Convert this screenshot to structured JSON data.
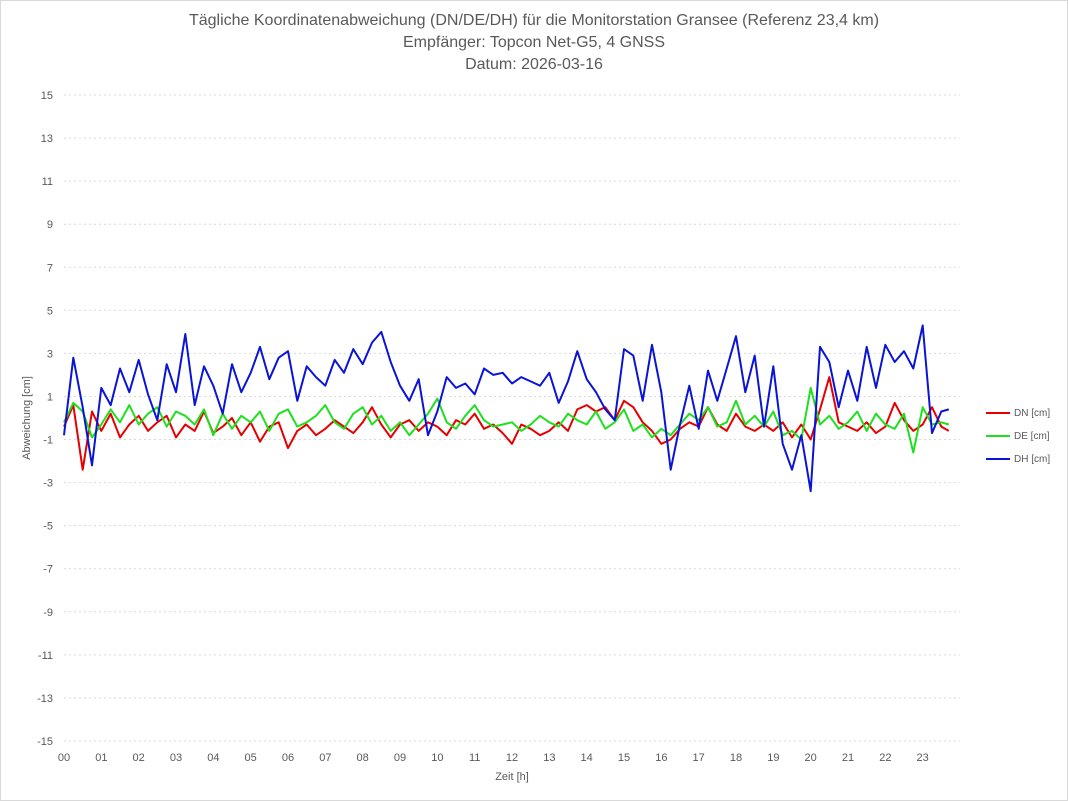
{
  "chart_data": {
    "type": "line",
    "title": "Tägliche Koordinatenabweichung (DN/DE/DH) für die Monitorstation Gransee (Referenz 23,4 km)",
    "subtitle": "Empfänger: Topcon Net-G5, 4 GNSS",
    "date_line": "Datum: 2026-03-16",
    "xlabel": "Zeit [h]",
    "ylabel": "Abweichung [cm]",
    "xlim": [
      0,
      24
    ],
    "ylim": [
      -15,
      15
    ],
    "x_ticks": [
      "00",
      "01",
      "02",
      "03",
      "04",
      "05",
      "06",
      "07",
      "08",
      "09",
      "10",
      "11",
      "12",
      "13",
      "14",
      "15",
      "16",
      "17",
      "18",
      "19",
      "20",
      "21",
      "22",
      "23"
    ],
    "y_ticks": [
      "15",
      "13",
      "11",
      "9",
      "7",
      "5",
      "3",
      "1",
      "-1",
      "-3",
      "-5",
      "-7",
      "-9",
      "-11",
      "-13",
      "-15"
    ],
    "grid": true,
    "legend_position": "right",
    "series": [
      {
        "name": "DN [cm]",
        "color": "#e60000",
        "x": [
          0,
          0.25,
          0.5,
          0.75,
          1,
          1.25,
          1.5,
          1.75,
          2,
          2.25,
          2.5,
          2.75,
          3,
          3.25,
          3.5,
          3.75,
          4,
          4.25,
          4.5,
          4.75,
          5,
          5.25,
          5.5,
          5.75,
          6,
          6.25,
          6.5,
          6.75,
          7,
          7.25,
          7.5,
          7.75,
          8,
          8.25,
          8.5,
          8.75,
          9,
          9.25,
          9.5,
          9.75,
          10,
          10.25,
          10.5,
          10.75,
          11,
          11.25,
          11.5,
          11.75,
          12,
          12.25,
          12.5,
          12.75,
          13,
          13.25,
          13.5,
          13.75,
          14,
          14.25,
          14.5,
          14.75,
          15,
          15.25,
          15.5,
          15.75,
          16,
          16.25,
          16.5,
          16.75,
          17,
          17.25,
          17.5,
          17.75,
          18,
          18.25,
          18.5,
          18.75,
          19,
          19.25,
          19.5,
          19.75,
          20,
          20.25,
          20.5,
          20.75,
          21,
          21.25,
          21.5,
          21.75,
          22,
          22.25,
          22.5,
          22.75,
          23,
          23.25,
          23.5,
          23.7
        ],
        "values": [
          -0.4,
          0.6,
          -2.4,
          0.3,
          -0.6,
          0.2,
          -0.9,
          -0.3,
          0.1,
          -0.6,
          -0.2,
          0.1,
          -0.9,
          -0.3,
          -0.6,
          0.3,
          -0.7,
          -0.4,
          0,
          -0.8,
          -0.2,
          -1.1,
          -0.4,
          -0.2,
          -1.4,
          -0.6,
          -0.3,
          -0.8,
          -0.5,
          -0.1,
          -0.4,
          -0.7,
          -0.2,
          0.5,
          -0.3,
          -0.9,
          -0.3,
          -0.1,
          -0.6,
          -0.2,
          -0.4,
          -0.8,
          -0.1,
          -0.3,
          0.2,
          -0.5,
          -0.3,
          -0.7,
          -1.2,
          -0.3,
          -0.5,
          -0.8,
          -0.6,
          -0.2,
          -0.6,
          0.4,
          0.6,
          0.3,
          0.5,
          -0.1,
          0.8,
          0.5,
          -0.2,
          -0.6,
          -1.2,
          -1,
          -0.5,
          -0.2,
          -0.4,
          0.5,
          -0.3,
          -0.6,
          0.2,
          -0.4,
          -0.6,
          -0.3,
          -0.6,
          -0.2,
          -0.9,
          -0.3,
          -1,
          0.4,
          1.9,
          -0.2,
          -0.4,
          -0.6,
          -0.2,
          -0.7,
          -0.4,
          0.7,
          -0.1,
          -0.6,
          -0.3,
          0.5,
          -0.4,
          -0.6
        ]
      },
      {
        "name": "DE [cm]",
        "color": "#1ee01e",
        "x": [
          0,
          0.25,
          0.5,
          0.75,
          1,
          1.25,
          1.5,
          1.75,
          2,
          2.25,
          2.5,
          2.75,
          3,
          3.25,
          3.5,
          3.75,
          4,
          4.25,
          4.5,
          4.75,
          5,
          5.25,
          5.5,
          5.75,
          6,
          6.25,
          6.5,
          6.75,
          7,
          7.25,
          7.5,
          7.75,
          8,
          8.25,
          8.5,
          8.75,
          9,
          9.25,
          9.5,
          9.75,
          10,
          10.25,
          10.5,
          10.75,
          11,
          11.25,
          11.5,
          11.75,
          12,
          12.25,
          12.5,
          12.75,
          13,
          13.25,
          13.5,
          13.75,
          14,
          14.25,
          14.5,
          14.75,
          15,
          15.25,
          15.5,
          15.75,
          16,
          16.25,
          16.5,
          16.75,
          17,
          17.25,
          17.5,
          17.75,
          18,
          18.25,
          18.5,
          18.75,
          19,
          19.25,
          19.5,
          19.75,
          20,
          20.25,
          20.5,
          20.75,
          21,
          21.25,
          21.5,
          21.75,
          22,
          22.25,
          22.5,
          22.75,
          23,
          23.25,
          23.5,
          23.7
        ],
        "values": [
          -0.2,
          0.7,
          0.3,
          -0.9,
          -0.3,
          0.4,
          -0.2,
          0.6,
          -0.3,
          0.2,
          0.5,
          -0.4,
          0.3,
          0.1,
          -0.3,
          0.4,
          -0.8,
          0.2,
          -0.5,
          0.1,
          -0.2,
          0.3,
          -0.6,
          0.2,
          0.4,
          -0.4,
          -0.2,
          0.1,
          0.6,
          -0.2,
          -0.5,
          0.2,
          0.5,
          -0.3,
          0.1,
          -0.6,
          -0.2,
          -0.8,
          -0.3,
          0.2,
          0.9,
          -0.2,
          -0.5,
          0.1,
          0.6,
          -0.1,
          -0.4,
          -0.3,
          -0.2,
          -0.6,
          -0.3,
          0.1,
          -0.2,
          -0.4,
          0.2,
          -0.1,
          -0.3,
          0.3,
          -0.5,
          -0.2,
          0.4,
          -0.6,
          -0.3,
          -0.9,
          -0.5,
          -0.8,
          -0.3,
          0.2,
          -0.1,
          0.5,
          -0.4,
          -0.2,
          0.8,
          -0.3,
          0.1,
          -0.4,
          0.3,
          -0.8,
          -0.6,
          -1,
          1.4,
          -0.3,
          0.1,
          -0.5,
          -0.2,
          0.3,
          -0.6,
          0.2,
          -0.3,
          -0.5,
          0.2,
          -1.6,
          0.5,
          -0.3,
          -0.2,
          -0.3
        ]
      },
      {
        "name": "DH [cm]",
        "color": "#0a14d6",
        "x": [
          0,
          0.25,
          0.5,
          0.75,
          1,
          1.25,
          1.5,
          1.75,
          2,
          2.25,
          2.5,
          2.75,
          3,
          3.25,
          3.5,
          3.75,
          4,
          4.25,
          4.5,
          4.75,
          5,
          5.25,
          5.5,
          5.75,
          6,
          6.25,
          6.5,
          6.75,
          7,
          7.25,
          7.5,
          7.75,
          8,
          8.25,
          8.5,
          8.75,
          9,
          9.25,
          9.5,
          9.75,
          10,
          10.25,
          10.5,
          10.75,
          11,
          11.25,
          11.5,
          11.75,
          12,
          12.25,
          12.5,
          12.75,
          13,
          13.25,
          13.5,
          13.75,
          14,
          14.25,
          14.5,
          14.75,
          15,
          15.25,
          15.5,
          15.75,
          16,
          16.25,
          16.5,
          16.75,
          17,
          17.25,
          17.5,
          17.75,
          18,
          18.25,
          18.5,
          18.75,
          19,
          19.25,
          19.5,
          19.75,
          20,
          20.25,
          20.5,
          20.75,
          21,
          21.25,
          21.5,
          21.75,
          22,
          22.25,
          22.5,
          22.75,
          23,
          23.25,
          23.5,
          23.7
        ],
        "values": [
          -0.8,
          2.8,
          0.5,
          -2.2,
          1.4,
          0.6,
          2.3,
          1.2,
          2.7,
          1.1,
          -0.1,
          2.5,
          1.2,
          3.9,
          0.6,
          2.4,
          1.5,
          0.2,
          2.5,
          1.2,
          2.1,
          3.3,
          1.8,
          2.8,
          3.1,
          0.8,
          2.4,
          1.9,
          1.5,
          2.7,
          2.1,
          3.2,
          2.5,
          3.5,
          4,
          2.6,
          1.5,
          0.8,
          1.8,
          -0.8,
          0.3,
          1.9,
          1.4,
          1.6,
          1.1,
          2.3,
          2,
          2.1,
          1.6,
          1.9,
          1.7,
          1.5,
          2.1,
          0.7,
          1.7,
          3.1,
          1.8,
          1.2,
          0.4,
          -0.1,
          3.2,
          2.9,
          0.8,
          3.4,
          1.2,
          -2.4,
          -0.3,
          1.5,
          -0.5,
          2.2,
          0.8,
          2.3,
          3.8,
          1.2,
          2.9,
          -0.4,
          2.4,
          -1.2,
          -2.4,
          -0.8,
          -3.4,
          3.3,
          2.6,
          0.5,
          2.2,
          0.8,
          3.3,
          1.4,
          3.4,
          2.6,
          3.1,
          2.3,
          4.3,
          -0.7,
          0.3,
          0.4
        ]
      }
    ]
  }
}
